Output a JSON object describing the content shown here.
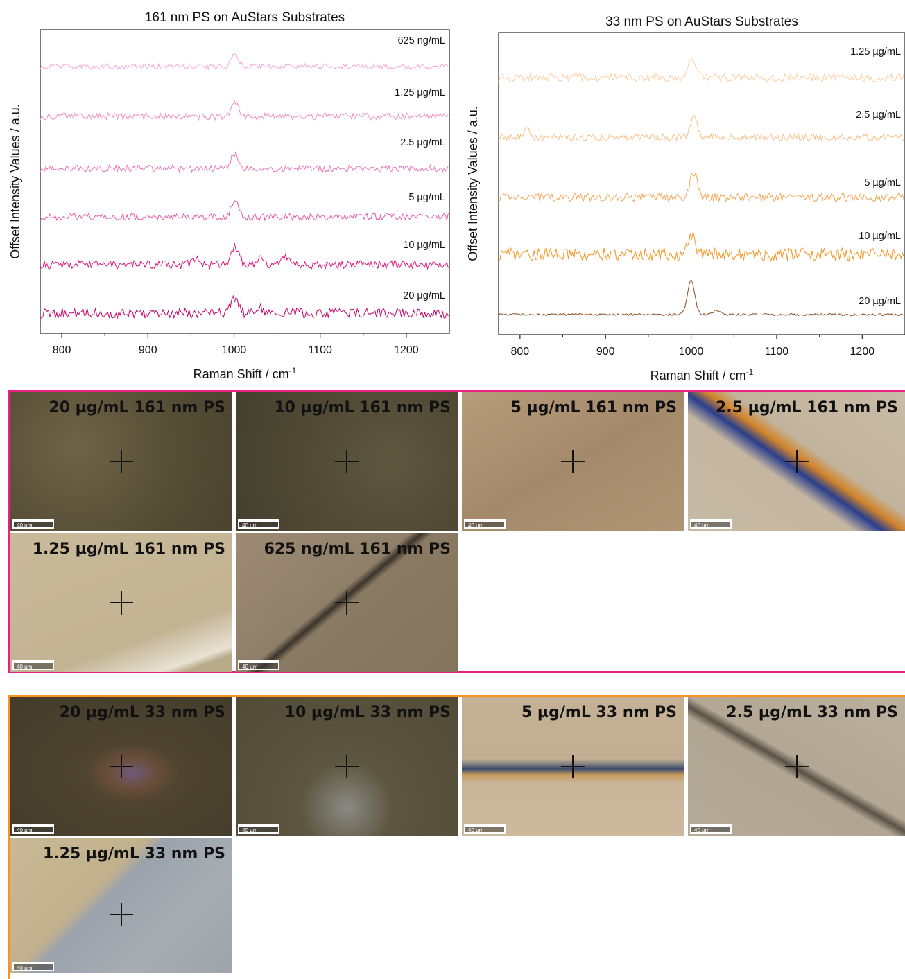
{
  "chart_data": [
    {
      "type": "line",
      "title": "161 nm PS on AuStars Substrates",
      "xlabel": "Raman Shift / cm",
      "xlabel_sup": "-1",
      "ylabel": "Offset Intensity Values / a.u.",
      "xlim": [
        775,
        1250
      ],
      "xticks": [
        800,
        900,
        1000,
        1100,
        1200
      ],
      "series": [
        {
          "name": "625 ng/mL",
          "color": "#f4a9cf",
          "peaks": [
            [
              1001,
              18
            ]
          ],
          "noise": 4
        },
        {
          "name": "1.25 µg/mL",
          "color": "#f08fc3",
          "peaks": [
            [
              1001,
              20
            ]
          ],
          "noise": 5
        },
        {
          "name": "2.5 µg/mL",
          "color": "#ec76b6",
          "peaks": [
            [
              1001,
              22
            ]
          ],
          "noise": 5
        },
        {
          "name": "5 µg/mL",
          "color": "#e85aa6",
          "peaks": [
            [
              1001,
              24
            ]
          ],
          "noise": 5
        },
        {
          "name": "10 µg/mL",
          "color": "#e0147a",
          "peaks": [
            [
              1001,
              28
            ],
            [
              1031,
              10
            ],
            [
              1060,
              12
            ],
            [
              955,
              8
            ]
          ],
          "noise": 6
        },
        {
          "name": "20 µg/mL",
          "color": "#c80068",
          "peaks": [
            [
              1001,
              22
            ],
            [
              1030,
              8
            ]
          ],
          "noise": 7
        }
      ]
    },
    {
      "type": "line",
      "title": "33 nm PS on AuStars Substrates",
      "xlabel": "Raman Shift / cm",
      "xlabel_sup": "-1",
      "ylabel": "Offset Intensity Values / a.u.",
      "xlim": [
        775,
        1250
      ],
      "xticks": [
        800,
        900,
        1000,
        1100,
        1200
      ],
      "series": [
        {
          "name": "1.25 µg/mL",
          "color": "#fbd0a6",
          "peaks": [
            [
              1001,
              32
            ]
          ],
          "noise": 6
        },
        {
          "name": "2.5 µg/mL",
          "color": "#f9bf85",
          "peaks": [
            [
              1003,
              30
            ],
            [
              808,
              10
            ]
          ],
          "noise": 5
        },
        {
          "name": "5 µg/mL",
          "color": "#f6a656",
          "peaks": [
            [
              1003,
              36
            ]
          ],
          "noise": 6
        },
        {
          "name": "10 µg/mL",
          "color": "#f7931e",
          "peaks": [
            [
              1001,
              28
            ]
          ],
          "noise": 9
        },
        {
          "name": "20 µg/mL",
          "color": "#8a4a1c",
          "peaks": [
            [
              1000,
              50
            ],
            [
              1030,
              6
            ]
          ],
          "noise": 1.5
        }
      ]
    }
  ],
  "micrographs_161": [
    {
      "label": "20 µg/mL 161 nm PS",
      "scale": "40 µm"
    },
    {
      "label": "10 µg/mL 161 nm PS",
      "scale": "40 µm"
    },
    {
      "label": "5 µg/mL 161 nm PS",
      "scale": "40 µm"
    },
    {
      "label": "2.5 µg/mL 161 nm PS",
      "scale": "40 µm"
    },
    {
      "label": "1.25 µg/mL 161 nm PS",
      "scale": "40 µm"
    },
    {
      "label": "625 ng/mL 161 nm PS",
      "scale": "40 µm"
    }
  ],
  "micrographs_33": [
    {
      "label": "20 µg/mL 33 nm PS",
      "scale": "40 µm"
    },
    {
      "label": "10 µg/mL 33 nm PS",
      "scale": "40 µm"
    },
    {
      "label": "5 µg/mL 33 nm PS",
      "scale": "40 µm"
    },
    {
      "label": "2.5 µg/mL 33 nm PS",
      "scale": "40 µm"
    },
    {
      "label": "1.25 µg/mL 33 nm PS",
      "scale": "40 µm"
    }
  ]
}
